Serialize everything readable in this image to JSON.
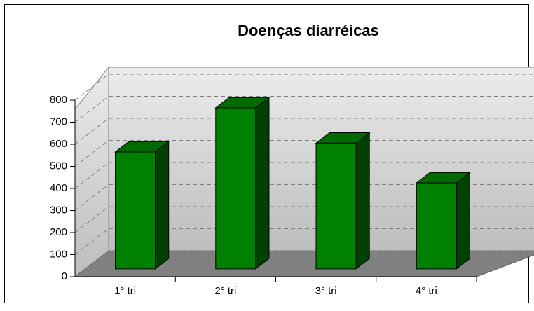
{
  "chart_data": {
    "type": "bar3d",
    "title": "Doenças diarréicas",
    "categories": [
      "1° tri",
      "2° tri",
      "3° tri",
      "4° tri"
    ],
    "values": [
      530,
      730,
      570,
      390
    ],
    "color": "#008000",
    "ylim": [
      0,
      800
    ],
    "yticks": [
      0,
      100,
      200,
      300,
      400,
      500,
      600,
      700,
      800
    ],
    "grid": true
  }
}
